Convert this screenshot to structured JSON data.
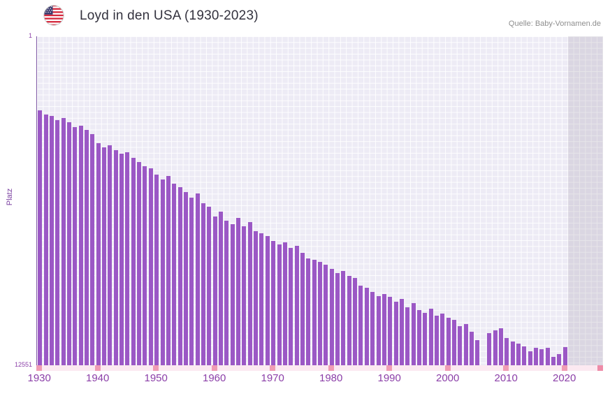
{
  "header": {
    "title": "Loyd in den USA (1930-2023)",
    "source": "Quelle: Baby-Vornamen.de",
    "flag_icon": "us-flag"
  },
  "colors": {
    "bar": "#9b58c5",
    "plot_background": "#edebf5",
    "axis_label_purple": "#8b3fa8",
    "axis_strip_pink": "#fce9f1",
    "axis_tick_pink": "#f09cb4",
    "title_text": "#33323e",
    "source_text": "#8e8e8e"
  },
  "chart_data": {
    "type": "bar",
    "title": "Loyd in den USA (1930-2023)",
    "subtitle": "",
    "xlabel": "",
    "ylabel": "Platz",
    "legend": null,
    "grid": true,
    "y_axis": {
      "inverted": true,
      "min": 1,
      "max": 12551,
      "top_label": "1",
      "bottom_label": "12551"
    },
    "x_ticks": [
      1930,
      1940,
      1950,
      1960,
      1970,
      1980,
      1990,
      2000,
      2010,
      2020
    ],
    "axis_start_year": 1930,
    "axis_end_year": 2026,
    "start_year": 2020,
    "no_data_from_year": 2021,
    "note": "ranks is the rank (Platz) of the name Loyd per year starting at first_year; lower rank = taller bar; null = no ranking that year",
    "first_year": 1930,
    "last_year": 2020,
    "ranks": [
      2820,
      2980,
      3040,
      3190,
      3110,
      3290,
      3470,
      3410,
      3560,
      3730,
      4080,
      4230,
      4150,
      4340,
      4480,
      4420,
      4640,
      4790,
      4960,
      5040,
      5280,
      5450,
      5340,
      5620,
      5760,
      5930,
      6150,
      6000,
      6380,
      6500,
      6880,
      6680,
      7040,
      7160,
      6940,
      7240,
      7100,
      7440,
      7520,
      7620,
      7800,
      7950,
      7870,
      8080,
      7980,
      8270,
      8460,
      8530,
      8600,
      8720,
      8870,
      9030,
      8950,
      9130,
      9210,
      9500,
      9590,
      9740,
      9910,
      9830,
      9940,
      10120,
      10030,
      10330,
      10180,
      10450,
      10550,
      10380,
      10650,
      10570,
      10740,
      10830,
      11060,
      10970,
      11280,
      11590,
      null,
      11320,
      11230,
      11140,
      11500,
      11640,
      11720,
      11840,
      12030,
      11890,
      11930,
      11880,
      12220,
      12120,
      11860
    ]
  }
}
